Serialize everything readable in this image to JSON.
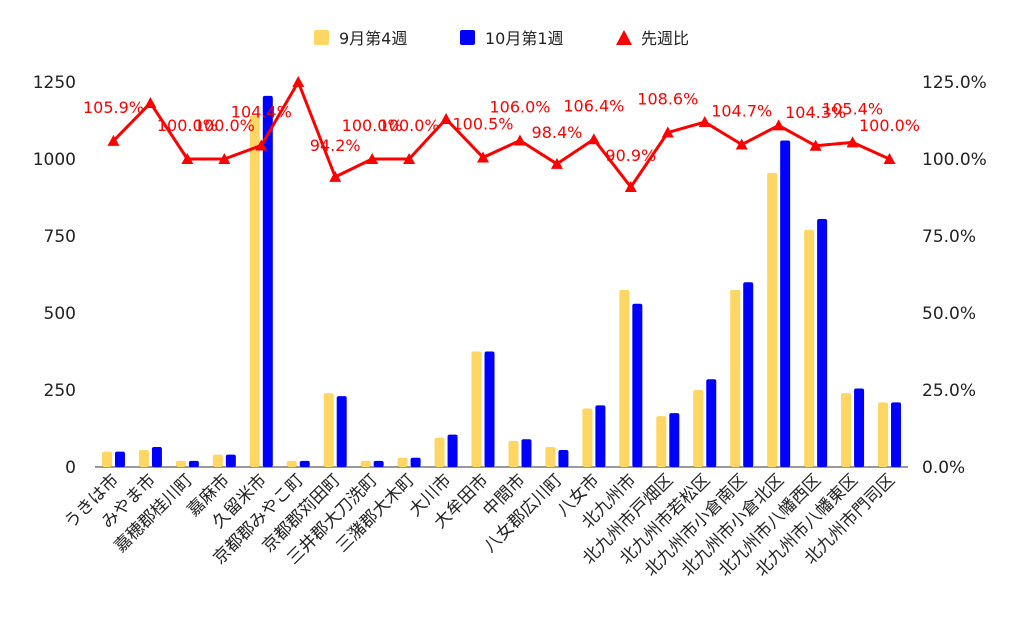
{
  "chart_data": {
    "type": "bar",
    "categories": [
      "うきは市",
      "みやま市",
      "嘉穂郡桂川町",
      "嘉麻市",
      "久留米市",
      "京都郡みやこ町",
      "京都郡苅田町",
      "三井郡大刀洗町",
      "三潴郡大木町",
      "大川市",
      "大牟田市",
      "中間市",
      "八女郡広川町",
      "八女市",
      "北九州市",
      "北九州市戸畑区",
      "北九州市若松区",
      "北九州市小倉南区",
      "北九州市小倉北区",
      "北九州市八幡西区",
      "北九州市八幡東区",
      "北九州市門司区"
    ],
    "series": [
      {
        "name": "9月第4週",
        "color": "#fdd663",
        "axis": "left",
        "values": [
          50,
          55,
          20,
          40,
          1140,
          20,
          240,
          20,
          30,
          95,
          375,
          85,
          65,
          190,
          575,
          165,
          250,
          575,
          955,
          770,
          240,
          210
        ]
      },
      {
        "name": "10月第1週",
        "color": "#0000ff",
        "axis": "left",
        "values": [
          50,
          65,
          20,
          40,
          1205,
          20,
          230,
          20,
          30,
          105,
          375,
          90,
          55,
          200,
          530,
          175,
          285,
          600,
          1060,
          805,
          255,
          210
        ]
      },
      {
        "name": "先週比",
        "color": "#ff0000",
        "axis": "right",
        "type": "line",
        "values": [
          105.9,
          118.2,
          100.0,
          100.0,
          104.4,
          125.0,
          94.2,
          100.0,
          100.0,
          113.0,
          100.5,
          106.0,
          98.4,
          106.4,
          90.9,
          108.6,
          112.0,
          104.7,
          110.9,
          104.3,
          105.4,
          100.0
        ],
        "labels": [
          "105.9%",
          "",
          "100.0%",
          "100.0%",
          "104.4%",
          "",
          "94.2%",
          "100.0%",
          "100.0%",
          "",
          "100.5%",
          "106.0%",
          "98.4%",
          "106.4%",
          "90.9%",
          "108.6%",
          "",
          "104.7%",
          "",
          "104.3%",
          "105.4%",
          "100.0%"
        ]
      }
    ],
    "y_left": {
      "min": 0,
      "max": 1250,
      "ticks": [
        "0",
        "250",
        "500",
        "750",
        "1000",
        "1250"
      ]
    },
    "y_right": {
      "min": 0,
      "max": 125,
      "ticks": [
        "0.0%",
        "25.0%",
        "50.0%",
        "75.0%",
        "100.0%",
        "125.0%"
      ]
    },
    "legend_position": "top-center",
    "grid": false
  }
}
